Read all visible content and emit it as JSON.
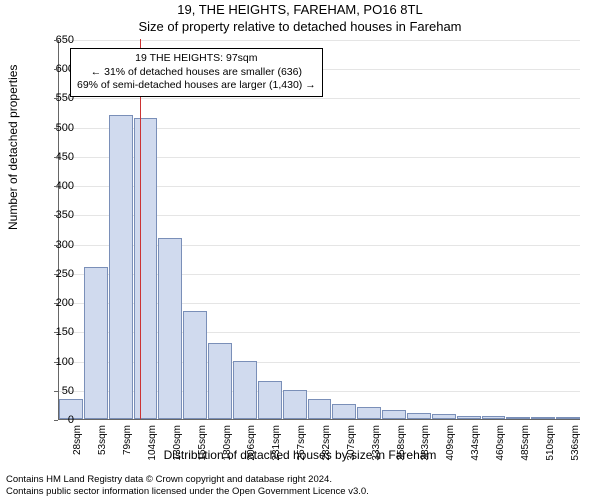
{
  "title_main": "19, THE HEIGHTS, FAREHAM, PO16 8TL",
  "title_sub": "Size of property relative to detached houses in Fareham",
  "y_axis_label": "Number of detached properties",
  "x_axis_label": "Distribution of detached houses by size in Fareham",
  "chart": {
    "type": "histogram",
    "ylim": [
      0,
      650
    ],
    "ytick_step": 50,
    "bar_fill": "#d0daee",
    "bar_stroke": "#7a8fb8",
    "grid_color": "#e5e5e5",
    "axis_color": "#666666",
    "marker_color": "#cc3333",
    "marker_x_value": 97,
    "x_categories": [
      "28sqm",
      "53sqm",
      "79sqm",
      "104sqm",
      "130sqm",
      "155sqm",
      "180sqm",
      "206sqm",
      "231sqm",
      "257sqm",
      "282sqm",
      "307sqm",
      "333sqm",
      "358sqm",
      "383sqm",
      "409sqm",
      "434sqm",
      "460sqm",
      "485sqm",
      "510sqm",
      "536sqm"
    ],
    "bar_values": [
      35,
      260,
      520,
      515,
      310,
      185,
      130,
      100,
      65,
      50,
      35,
      25,
      20,
      15,
      10,
      8,
      6,
      5,
      4,
      3,
      2
    ]
  },
  "info_box": {
    "line1": "19 THE HEIGHTS: 97sqm",
    "line2": "← 31% of detached houses are smaller (636)",
    "line3": "69% of semi-detached houses are larger (1,430) →"
  },
  "footer": {
    "line1": "Contains HM Land Registry data © Crown copyright and database right 2024.",
    "line2": "Contains public sector information licensed under the Open Government Licence v3.0."
  }
}
